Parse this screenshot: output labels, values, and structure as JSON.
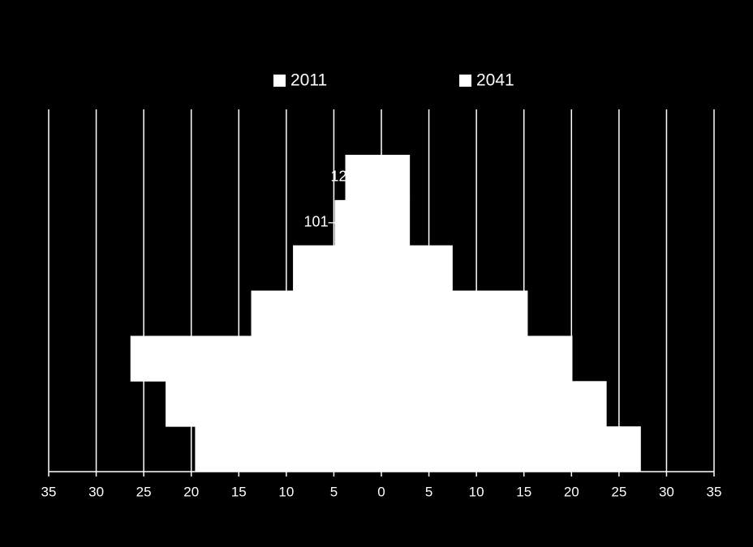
{
  "chart_data": {
    "type": "pyramid",
    "categories": [
      "12",
      "101–",
      null,
      null,
      null,
      null,
      null
    ],
    "series": [
      {
        "name": "2011",
        "color": "#ffffff",
        "values": [
          -3.8,
          -4.9,
          -9.3,
          -13.7,
          -26.4,
          -22.7,
          -19.6
        ]
      },
      {
        "name": "2041",
        "color": "#ffffff",
        "values": [
          3.0,
          3.0,
          7.5,
          15.4,
          20.1,
          23.7,
          27.3
        ]
      }
    ],
    "xlim": [
      -35,
      35
    ],
    "xticks": [
      {
        "value": -35,
        "label": "35"
      },
      {
        "value": -30,
        "label": "30"
      },
      {
        "value": -25,
        "label": "25"
      },
      {
        "value": -20,
        "label": "20"
      },
      {
        "value": -15,
        "label": "15"
      },
      {
        "value": -10,
        "label": "10"
      },
      {
        "value": -5,
        "label": "5"
      },
      0,
      5,
      10,
      15,
      20,
      25,
      30,
      35
    ],
    "grid": true
  }
}
